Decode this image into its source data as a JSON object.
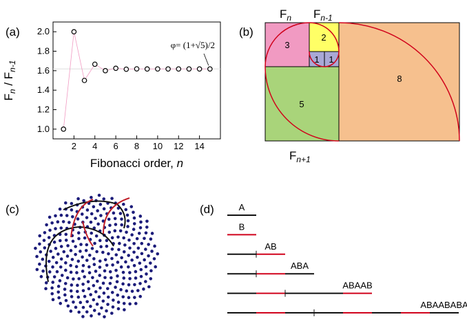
{
  "chart_data": {
    "type": "scatter",
    "panel_label": "(a)",
    "x": [
      1,
      2,
      3,
      4,
      5,
      6,
      7,
      8,
      9,
      10,
      11,
      12,
      13,
      14,
      15
    ],
    "values": [
      1,
      2,
      1.5,
      1.6667,
      1.6,
      1.625,
      1.6154,
      1.619,
      1.6176,
      1.6182,
      1.618,
      1.618,
      1.618,
      1.618,
      1.618
    ],
    "color": "#000000",
    "line_color": "#f19ac2",
    "hline": 1.618,
    "xlim": [
      0,
      16
    ],
    "ylim": [
      0.9,
      2.1
    ],
    "xticks": [
      2,
      4,
      6,
      8,
      10,
      12,
      14
    ],
    "yticks": [
      {
        "value": 1.0,
        "label": "1.0"
      },
      {
        "value": 1.2,
        "label": "1.2"
      },
      {
        "value": 1.4,
        "label": "1.4"
      },
      {
        "value": 1.6,
        "label": "1.6"
      },
      {
        "value": 1.8,
        "label": "1.8"
      },
      {
        "value": 2.0,
        "label": "2.0"
      }
    ],
    "x_label": [
      "Fibonacci order, ",
      "n"
    ],
    "y_label": [
      "F",
      "n",
      " / F",
      "n-1"
    ],
    "annotation": "φ= (1+√5)/2"
  },
  "panel_b": {
    "label": "(b)",
    "squares": [
      "3",
      "2",
      "1",
      "1",
      "5",
      "8"
    ],
    "top_left": [
      "F",
      "n"
    ],
    "top_right": [
      "F",
      "n-1"
    ],
    "bottom": [
      "F",
      "n+1"
    ]
  },
  "panel_c": {
    "label": "(c)"
  },
  "panel_d": {
    "label": "(d)",
    "words": [
      "A",
      "B",
      "AB",
      "ABA",
      "ABAAB",
      "ABAABABA"
    ]
  }
}
